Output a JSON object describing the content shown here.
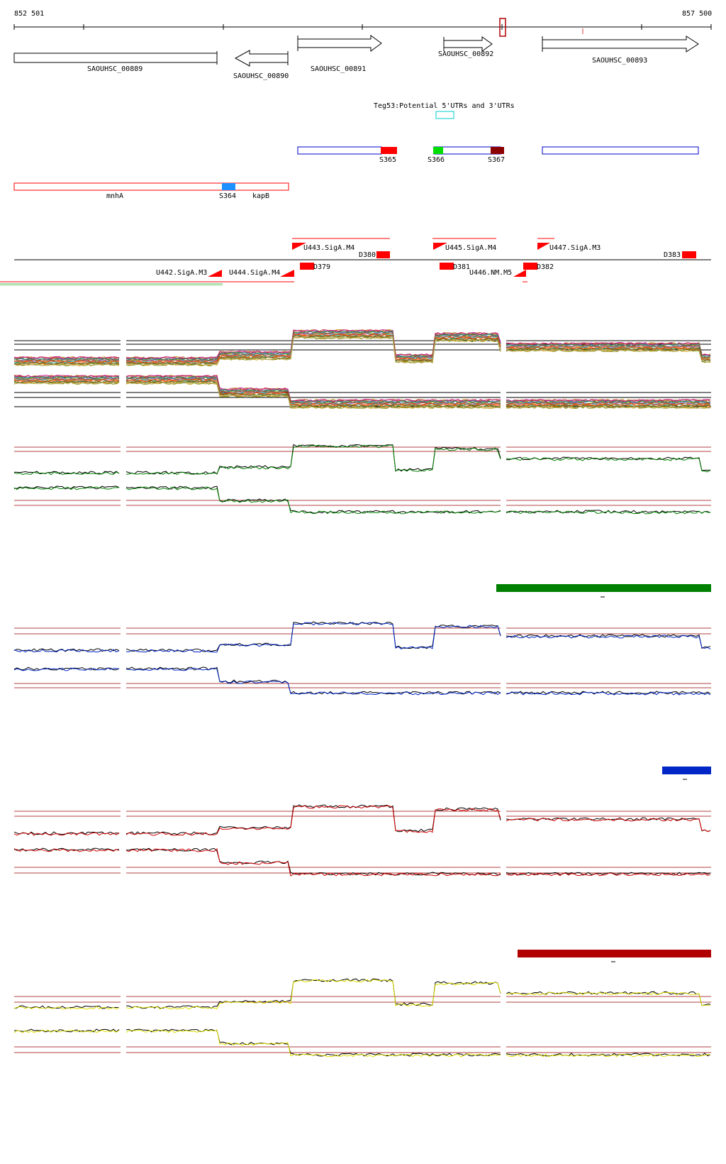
{
  "coords": {
    "start": "852 501",
    "end": "857 500"
  },
  "genes": [
    {
      "label": "SAOUHSC_00889"
    },
    {
      "label": "SAOUHSC_00890"
    },
    {
      "label": "SAOUHSC_00891"
    },
    {
      "label": "SAOUHSC_00892"
    },
    {
      "label": "SAOUHSC_00893"
    }
  ],
  "teg_label": "Teg53:Potential 5'UTRs and 3'UTRs",
  "s_labels": [
    "S364",
    "S365",
    "S366",
    "S367"
  ],
  "operon_labels": [
    "mnhA",
    "kapB"
  ],
  "promoters": [
    {
      "label": "U442.SigA.M3"
    },
    {
      "label": "U443.SigA.M4"
    },
    {
      "label": "U444.SigA.M4"
    },
    {
      "label": "U445.SigA.M4"
    },
    {
      "label": "U446.NM.M5"
    },
    {
      "label": "U447.SigA.M3"
    }
  ],
  "d_labels": [
    "D379",
    "D380",
    "D381",
    "D382",
    "D383"
  ],
  "colors": {
    "gene_outline": "#000000",
    "utr_blue": "#0000cc",
    "operon_red": "#ff0000",
    "s364": "#1e90ff",
    "s365": "#ff0000",
    "s366": "#00dd00",
    "s367": "#8b0000",
    "teg": "#00cccc",
    "panel_green": "#008000",
    "panel_blue": "#0026c8",
    "panel_red": "#d00000",
    "panel_yellow": "#e0e000",
    "bar_green": "#008000",
    "bar_blue": "#0026c8",
    "bar_darkred": "#b00000",
    "ref_line": "#b04040"
  }
}
